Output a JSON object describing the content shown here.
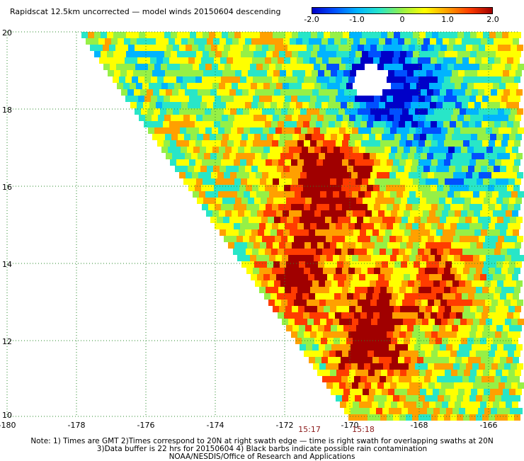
{
  "title": "Rapidscat 12.5km uncorrected — model winds 20150604 descending",
  "colorbar": {
    "stops": [
      "#0000c8",
      "#0050ff",
      "#00b4ff",
      "#28e6c8",
      "#96f046",
      "#ffff00",
      "#ffa000",
      "#ff3c00",
      "#a00000"
    ],
    "ticks": [
      "-2.0",
      "-1.0",
      "0",
      "1.0",
      "2.0"
    ]
  },
  "axes": {
    "y_labels": [
      "20",
      "18",
      "16",
      "14",
      "12",
      "10"
    ],
    "x_labels": [
      "-180",
      "-178",
      "-176",
      "-174",
      "-172",
      "-170",
      "-168",
      "-166"
    ],
    "lon_range": [
      -180,
      -165
    ],
    "lat_range": [
      10,
      20
    ]
  },
  "times": [
    "15:17",
    "15:18"
  ],
  "notes": [
    "Note: 1) Times are GMT 2)Times correspond to 20N at right swath edge — time is right swath for overlapping swaths at 20N",
    "3)Data buffer is 22 hrs for 20150604 4) Black barbs indicate possible rain contamination",
    "NOAA/NESDIS/Office of Research and Applications"
  ]
}
